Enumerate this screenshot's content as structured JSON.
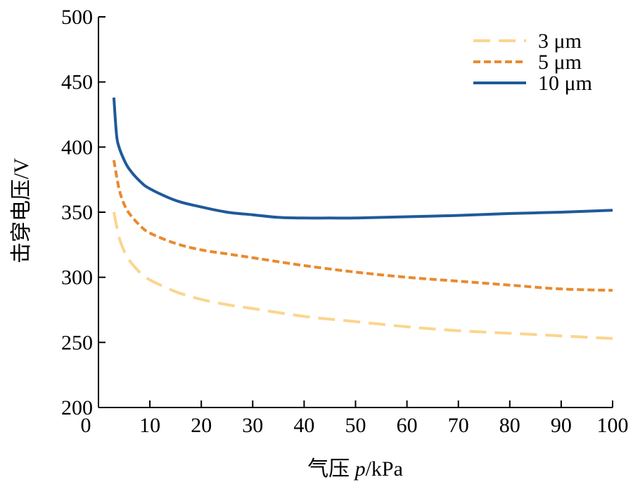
{
  "chart_data": {
    "type": "line",
    "xlabel": "气压 p/kPa",
    "xlabel_parts": {
      "prefix": "气压 ",
      "var": "p",
      "suffix": "/kPa"
    },
    "ylabel": "击穿电压/V",
    "xlim": [
      0,
      100
    ],
    "ylim": [
      200,
      500
    ],
    "x_ticks": [
      0,
      10,
      20,
      30,
      40,
      50,
      60,
      70,
      80,
      90,
      100
    ],
    "y_ticks": [
      200,
      250,
      300,
      350,
      400,
      450,
      500
    ],
    "grid": false,
    "legend_position": "top-right",
    "series": [
      {
        "name": "3 μm",
        "color": "#fbd58e",
        "dash": "long-dash",
        "x": [
          3,
          4,
          5,
          6,
          8,
          10,
          15,
          20,
          25,
          30,
          40,
          50,
          60,
          70,
          80,
          90,
          100
        ],
        "y": [
          350,
          331,
          320,
          313,
          304,
          298,
          289,
          283,
          279,
          276,
          270,
          266,
          262,
          259,
          257,
          255,
          253
        ]
      },
      {
        "name": "5 μm",
        "color": "#e98a2e",
        "dash": "short-dash",
        "x": [
          3,
          4,
          5,
          6,
          8,
          10,
          15,
          20,
          25,
          30,
          40,
          50,
          60,
          70,
          80,
          90,
          100
        ],
        "y": [
          390,
          368,
          356,
          349,
          340,
          334,
          326,
          321,
          318,
          315,
          309,
          304,
          300,
          297,
          294,
          291,
          290
        ]
      },
      {
        "name": "10 μm",
        "color": "#1f5a99",
        "dash": "solid",
        "x": [
          3,
          3.5,
          4,
          5,
          6,
          8,
          10,
          15,
          20,
          25,
          30,
          35,
          40,
          45,
          50,
          60,
          70,
          80,
          90,
          100
        ],
        "y": [
          438,
          410,
          400,
          390,
          383,
          374,
          368,
          359,
          354,
          350,
          348,
          346,
          345.5,
          345.5,
          345.5,
          346.5,
          347.5,
          349,
          350,
          351.5
        ]
      }
    ]
  }
}
